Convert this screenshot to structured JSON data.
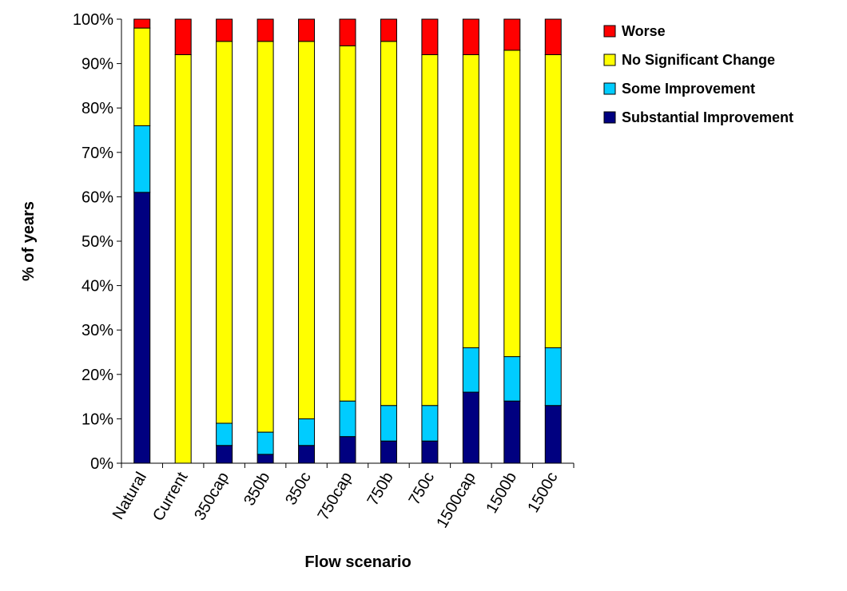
{
  "chart_data": {
    "type": "bar",
    "stacked": true,
    "categories": [
      "Natural",
      "Current",
      "350cap",
      "350b",
      "350c",
      "750cap",
      "750b",
      "750c",
      "1500cap",
      "1500b",
      "1500c"
    ],
    "series": [
      {
        "name": "Substantial Improvement",
        "color": "#000080",
        "values": [
          61,
          0,
          4,
          2,
          4,
          6,
          5,
          5,
          16,
          14,
          13
        ]
      },
      {
        "name": "Some Improvement",
        "color": "#00CCFF",
        "values": [
          15,
          0,
          5,
          5,
          6,
          8,
          8,
          8,
          10,
          10,
          13
        ]
      },
      {
        "name": "No Significant Change",
        "color": "#FFFF00",
        "values": [
          22,
          92,
          86,
          88,
          85,
          80,
          82,
          79,
          66,
          69,
          66
        ]
      },
      {
        "name": "Worse",
        "color": "#FF0000",
        "values": [
          2,
          8,
          5,
          5,
          5,
          6,
          5,
          8,
          8,
          7,
          8
        ]
      }
    ],
    "legend_order": [
      "Worse",
      "No Significant Change",
      "Some Improvement",
      "Substantial Improvement"
    ],
    "xlabel": "Flow scenario",
    "ylabel": "% of years",
    "ylim": [
      0,
      100
    ],
    "yticks": [
      "0%",
      "10%",
      "20%",
      "30%",
      "40%",
      "50%",
      "60%",
      "70%",
      "80%",
      "90%",
      "100%"
    ],
    "grid": false,
    "legend_position": "top-right"
  }
}
